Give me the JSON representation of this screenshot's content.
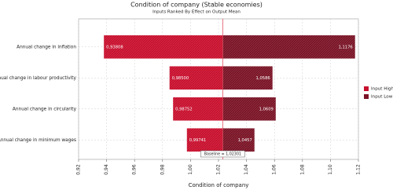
{
  "chart_data": {
    "type": "tornado",
    "title": "Condition of company (Stable economies)",
    "subtitle": "Inputs Ranked By Effect on Output Mean",
    "x_label": "Condition of company",
    "categories": [
      "Annual change in inflation",
      "Annual change in labour productivity",
      "Annual change in circularity",
      "Annual change in minimum wages"
    ],
    "series": [
      {
        "name": "Input High",
        "color": "#c8102e",
        "values": [
          0.93808,
          0.985,
          0.98752,
          0.99741
        ],
        "value_labels": [
          "0,93808",
          "0,98500",
          "0,98752",
          "0,99741"
        ]
      },
      {
        "name": "Input Low",
        "color": "#7a1426",
        "values": [
          1.1176,
          1.0586,
          1.0609,
          1.0457
        ],
        "value_labels": [
          "1,1176",
          "1,0586",
          "1,0609",
          "1,0457"
        ]
      }
    ],
    "baseline": {
      "value": 1.02301,
      "label": "Baseline = 1,02301"
    },
    "xlim": [
      0.92,
      1.12
    ],
    "xticks": [
      {
        "value": 0.92,
        "label": "0,92"
      },
      {
        "value": 0.94,
        "label": "0,94"
      },
      {
        "value": 0.96,
        "label": "0,96"
      },
      {
        "value": 0.98,
        "label": "0,98"
      },
      {
        "value": 1.0,
        "label": "1,00"
      },
      {
        "value": 1.02,
        "label": "1,02"
      },
      {
        "value": 1.04,
        "label": "1,04"
      },
      {
        "value": 1.06,
        "label": "1,06"
      },
      {
        "value": 1.08,
        "label": "1,08"
      },
      {
        "value": 1.1,
        "label": "1,10"
      },
      {
        "value": 1.12,
        "label": "1,12"
      }
    ],
    "grid": true,
    "legend": "right"
  }
}
